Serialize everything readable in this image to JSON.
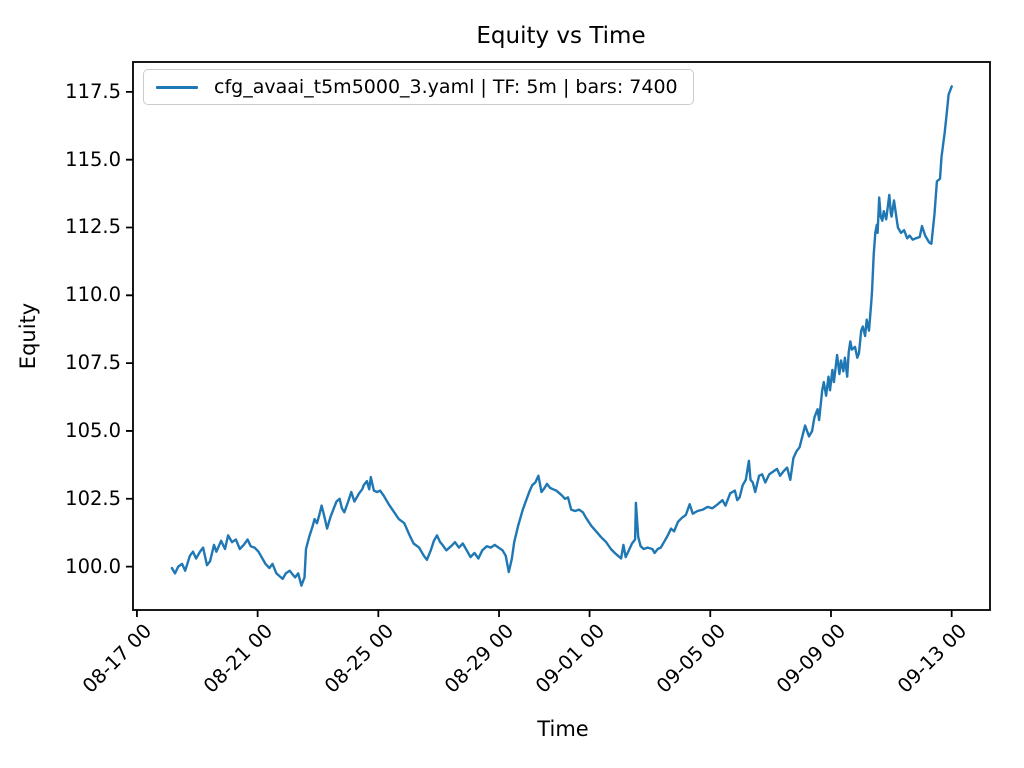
{
  "title": "Equity vs Time",
  "legend": {
    "label": "cfg_avaai_t5m5000_3.yaml | TF: 5m | bars: 7400",
    "line_color": "#1f77b4"
  },
  "chart_data": {
    "type": "line",
    "title": "Equity vs Time",
    "xlabel": "Time",
    "ylabel": "Equity",
    "grid": false,
    "legend_position": "upper left",
    "axis_color": "#000000",
    "background": "#ffffff",
    "x_ticks": [
      {
        "label": "08-17 00",
        "day": 0
      },
      {
        "label": "08-21 00",
        "day": 4
      },
      {
        "label": "08-25 00",
        "day": 8
      },
      {
        "label": "08-29 00",
        "day": 12
      },
      {
        "label": "09-01 00",
        "day": 15
      },
      {
        "label": "09-05 00",
        "day": 19
      },
      {
        "label": "09-09 00",
        "day": 23
      },
      {
        "label": "09-13 00",
        "day": 27
      }
    ],
    "y_ticks": [
      100.0,
      102.5,
      105.0,
      107.5,
      110.0,
      112.5,
      115.0,
      117.5
    ],
    "xlim_days": [
      -0.13,
      28.27
    ],
    "ylim": [
      98.4,
      118.6
    ],
    "series": [
      {
        "name": "cfg_avaai_t5m5000_3.yaml | TF: 5m | bars: 7400",
        "color": "#1f77b4",
        "timeframe": "5m",
        "bars": 7400,
        "data_start_day": 1.16,
        "data_end_day": 27.0,
        "points": [
          [
            0.0,
            99.95
          ],
          [
            0.004,
            99.75
          ],
          [
            0.008,
            100.0
          ],
          [
            0.013,
            100.1
          ],
          [
            0.017,
            99.85
          ],
          [
            0.023,
            100.4
          ],
          [
            0.027,
            100.55
          ],
          [
            0.031,
            100.3
          ],
          [
            0.036,
            100.55
          ],
          [
            0.04,
            100.7
          ],
          [
            0.045,
            100.05
          ],
          [
            0.049,
            100.2
          ],
          [
            0.054,
            100.8
          ],
          [
            0.057,
            100.55
          ],
          [
            0.063,
            100.95
          ],
          [
            0.068,
            100.65
          ],
          [
            0.072,
            101.15
          ],
          [
            0.077,
            100.9
          ],
          [
            0.082,
            101.0
          ],
          [
            0.087,
            100.65
          ],
          [
            0.092,
            100.8
          ],
          [
            0.097,
            101.0
          ],
          [
            0.101,
            100.75
          ],
          [
            0.106,
            100.7
          ],
          [
            0.111,
            100.55
          ],
          [
            0.116,
            100.3
          ],
          [
            0.12,
            100.1
          ],
          [
            0.125,
            99.95
          ],
          [
            0.129,
            100.1
          ],
          [
            0.134,
            99.75
          ],
          [
            0.138,
            99.65
          ],
          [
            0.142,
            99.55
          ],
          [
            0.146,
            99.75
          ],
          [
            0.151,
            99.85
          ],
          [
            0.155,
            99.7
          ],
          [
            0.158,
            99.6
          ],
          [
            0.162,
            99.75
          ],
          [
            0.166,
            99.3
          ],
          [
            0.17,
            99.6
          ],
          [
            0.172,
            100.65
          ],
          [
            0.176,
            101.1
          ],
          [
            0.18,
            101.45
          ],
          [
            0.183,
            101.75
          ],
          [
            0.186,
            101.6
          ],
          [
            0.189,
            101.9
          ],
          [
            0.192,
            102.25
          ],
          [
            0.195,
            101.9
          ],
          [
            0.199,
            101.4
          ],
          [
            0.203,
            101.8
          ],
          [
            0.207,
            102.1
          ],
          [
            0.211,
            102.4
          ],
          [
            0.215,
            102.5
          ],
          [
            0.218,
            102.15
          ],
          [
            0.221,
            102.0
          ],
          [
            0.226,
            102.4
          ],
          [
            0.23,
            102.75
          ],
          [
            0.234,
            102.4
          ],
          [
            0.238,
            102.6
          ],
          [
            0.24,
            102.7
          ],
          [
            0.244,
            102.85
          ],
          [
            0.246,
            103.0
          ],
          [
            0.25,
            103.15
          ],
          [
            0.253,
            102.85
          ],
          [
            0.255,
            103.3
          ],
          [
            0.259,
            102.8
          ],
          [
            0.263,
            102.75
          ],
          [
            0.267,
            102.8
          ],
          [
            0.272,
            102.6
          ],
          [
            0.278,
            102.3
          ],
          [
            0.285,
            102.0
          ],
          [
            0.291,
            101.75
          ],
          [
            0.298,
            101.6
          ],
          [
            0.304,
            101.2
          ],
          [
            0.31,
            100.85
          ],
          [
            0.317,
            100.7
          ],
          [
            0.323,
            100.4
          ],
          [
            0.327,
            100.25
          ],
          [
            0.332,
            100.6
          ],
          [
            0.336,
            100.95
          ],
          [
            0.34,
            101.15
          ],
          [
            0.344,
            100.9
          ],
          [
            0.347,
            100.8
          ],
          [
            0.352,
            100.6
          ],
          [
            0.358,
            100.75
          ],
          [
            0.363,
            100.9
          ],
          [
            0.368,
            100.7
          ],
          [
            0.373,
            100.85
          ],
          [
            0.378,
            100.6
          ],
          [
            0.383,
            100.35
          ],
          [
            0.388,
            100.5
          ],
          [
            0.393,
            100.3
          ],
          [
            0.398,
            100.6
          ],
          [
            0.404,
            100.75
          ],
          [
            0.409,
            100.7
          ],
          [
            0.414,
            100.8
          ],
          [
            0.419,
            100.7
          ],
          [
            0.424,
            100.6
          ],
          [
            0.428,
            100.4
          ],
          [
            0.432,
            99.8
          ],
          [
            0.436,
            100.3
          ],
          [
            0.439,
            100.9
          ],
          [
            0.444,
            101.5
          ],
          [
            0.45,
            102.1
          ],
          [
            0.455,
            102.5
          ],
          [
            0.459,
            102.8
          ],
          [
            0.462,
            103.0
          ],
          [
            0.466,
            103.1
          ],
          [
            0.47,
            103.35
          ],
          [
            0.474,
            102.75
          ],
          [
            0.478,
            102.9
          ],
          [
            0.481,
            103.05
          ],
          [
            0.485,
            102.9
          ],
          [
            0.489,
            102.85
          ],
          [
            0.493,
            102.8
          ],
          [
            0.497,
            102.7
          ],
          [
            0.501,
            102.6
          ],
          [
            0.504,
            102.5
          ],
          [
            0.508,
            102.55
          ],
          [
            0.512,
            102.1
          ],
          [
            0.517,
            102.05
          ],
          [
            0.522,
            102.1
          ],
          [
            0.527,
            102.0
          ],
          [
            0.531,
            101.8
          ],
          [
            0.538,
            101.5
          ],
          [
            0.544,
            101.3
          ],
          [
            0.55,
            101.1
          ],
          [
            0.557,
            100.9
          ],
          [
            0.563,
            100.65
          ],
          [
            0.568,
            100.5
          ],
          [
            0.572,
            100.4
          ],
          [
            0.576,
            100.3
          ],
          [
            0.579,
            100.8
          ],
          [
            0.582,
            100.35
          ],
          [
            0.586,
            100.6
          ],
          [
            0.59,
            100.85
          ],
          [
            0.594,
            101.0
          ],
          [
            0.595,
            102.35
          ],
          [
            0.598,
            101.1
          ],
          [
            0.601,
            100.75
          ],
          [
            0.605,
            100.65
          ],
          [
            0.61,
            100.7
          ],
          [
            0.616,
            100.65
          ],
          [
            0.619,
            100.5
          ],
          [
            0.623,
            100.65
          ],
          [
            0.627,
            100.7
          ],
          [
            0.632,
            100.95
          ],
          [
            0.636,
            101.15
          ],
          [
            0.64,
            101.4
          ],
          [
            0.644,
            101.3
          ],
          [
            0.649,
            101.65
          ],
          [
            0.654,
            101.8
          ],
          [
            0.659,
            101.9
          ],
          [
            0.664,
            102.3
          ],
          [
            0.668,
            101.95
          ],
          [
            0.674,
            102.05
          ],
          [
            0.681,
            102.1
          ],
          [
            0.687,
            102.2
          ],
          [
            0.693,
            102.15
          ],
          [
            0.7,
            102.3
          ],
          [
            0.706,
            102.45
          ],
          [
            0.71,
            102.25
          ],
          [
            0.716,
            102.7
          ],
          [
            0.722,
            102.8
          ],
          [
            0.725,
            102.45
          ],
          [
            0.728,
            102.55
          ],
          [
            0.732,
            103.0
          ],
          [
            0.736,
            103.2
          ],
          [
            0.74,
            103.9
          ],
          [
            0.742,
            103.2
          ],
          [
            0.745,
            103.1
          ],
          [
            0.748,
            102.75
          ],
          [
            0.753,
            103.35
          ],
          [
            0.757,
            103.4
          ],
          [
            0.761,
            103.1
          ],
          [
            0.766,
            103.4
          ],
          [
            0.771,
            103.5
          ],
          [
            0.776,
            103.6
          ],
          [
            0.78,
            103.35
          ],
          [
            0.784,
            103.5
          ],
          [
            0.789,
            103.65
          ],
          [
            0.793,
            103.2
          ],
          [
            0.797,
            104.0
          ],
          [
            0.801,
            104.25
          ],
          [
            0.805,
            104.4
          ],
          [
            0.808,
            104.75
          ],
          [
            0.812,
            105.2
          ],
          [
            0.817,
            104.8
          ],
          [
            0.821,
            105.0
          ],
          [
            0.824,
            105.5
          ],
          [
            0.828,
            105.8
          ],
          [
            0.83,
            105.4
          ],
          [
            0.834,
            106.5
          ],
          [
            0.836,
            106.8
          ],
          [
            0.839,
            106.3
          ],
          [
            0.842,
            107.0
          ],
          [
            0.844,
            106.5
          ],
          [
            0.847,
            107.25
          ],
          [
            0.849,
            106.8
          ],
          [
            0.853,
            107.8
          ],
          [
            0.856,
            107.1
          ],
          [
            0.858,
            107.6
          ],
          [
            0.861,
            107.2
          ],
          [
            0.863,
            107.7
          ],
          [
            0.866,
            107.0
          ],
          [
            0.868,
            107.9
          ],
          [
            0.87,
            108.3
          ],
          [
            0.872,
            108.0
          ],
          [
            0.876,
            108.1
          ],
          [
            0.879,
            107.7
          ],
          [
            0.881,
            107.85
          ],
          [
            0.884,
            108.7
          ],
          [
            0.886,
            108.85
          ],
          [
            0.889,
            108.5
          ],
          [
            0.891,
            109.1
          ],
          [
            0.894,
            108.7
          ],
          [
            0.897,
            109.8
          ],
          [
            0.898,
            110.2
          ],
          [
            0.9,
            111.5
          ],
          [
            0.902,
            112.3
          ],
          [
            0.904,
            112.6
          ],
          [
            0.905,
            112.3
          ],
          [
            0.907,
            113.6
          ],
          [
            0.909,
            112.9
          ],
          [
            0.911,
            112.75
          ],
          [
            0.913,
            113.1
          ],
          [
            0.916,
            112.8
          ],
          [
            0.92,
            113.7
          ],
          [
            0.922,
            113.0
          ],
          [
            0.923,
            112.9
          ],
          [
            0.926,
            113.5
          ],
          [
            0.929,
            112.9
          ],
          [
            0.931,
            112.5
          ],
          [
            0.935,
            112.3
          ],
          [
            0.939,
            112.4
          ],
          [
            0.943,
            112.1
          ],
          [
            0.946,
            112.2
          ],
          [
            0.95,
            112.05
          ],
          [
            0.954,
            112.1
          ],
          [
            0.959,
            112.15
          ],
          [
            0.962,
            112.55
          ],
          [
            0.966,
            112.2
          ],
          [
            0.971,
            111.95
          ],
          [
            0.974,
            111.9
          ],
          [
            0.978,
            113.0
          ],
          [
            0.981,
            114.2
          ],
          [
            0.985,
            114.3
          ],
          [
            0.987,
            115.1
          ],
          [
            0.991,
            116.0
          ],
          [
            0.994,
            116.8
          ],
          [
            0.996,
            117.4
          ],
          [
            1.0,
            117.7
          ]
        ]
      }
    ]
  }
}
